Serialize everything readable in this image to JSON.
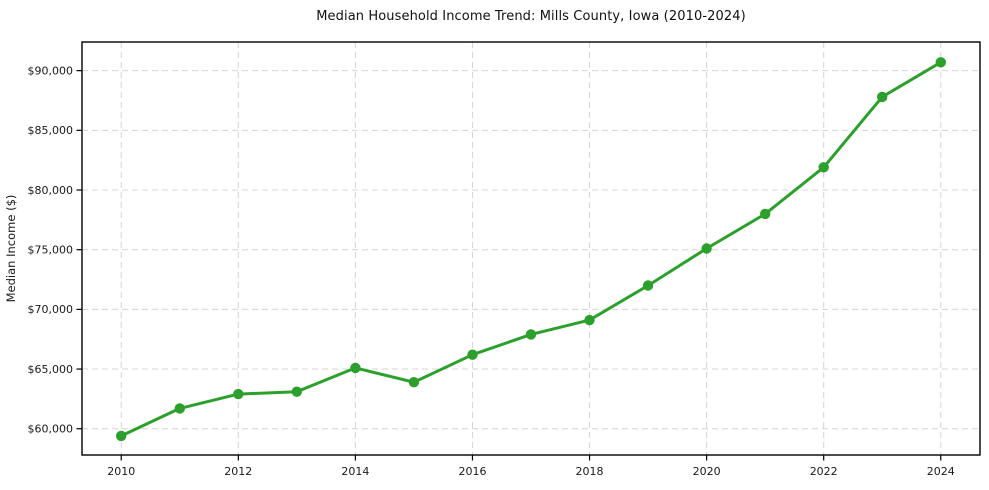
{
  "chart_data": {
    "type": "line",
    "title": "Median Household Income Trend: Mills County, Iowa (2010-2024)",
    "xlabel": "",
    "ylabel": "Median Income ($)",
    "x": [
      2010,
      2011,
      2012,
      2013,
      2014,
      2015,
      2016,
      2017,
      2018,
      2019,
      2020,
      2021,
      2022,
      2023,
      2024
    ],
    "series": [
      {
        "name": "Median Household Income",
        "values": [
          59400,
          61700,
          62900,
          63100,
          65100,
          63900,
          66200,
          67900,
          69100,
          72000,
          75100,
          78000,
          81900,
          87800,
          90700
        ],
        "color": "#2ca02c",
        "marker": "circle",
        "line_width": 3
      }
    ],
    "x_ticks": [
      2010,
      2012,
      2014,
      2016,
      2018,
      2020,
      2022,
      2024
    ],
    "x_tick_labels": [
      "2010",
      "2012",
      "2014",
      "2016",
      "2018",
      "2020",
      "2022",
      "2024"
    ],
    "y_ticks": [
      60000,
      65000,
      70000,
      75000,
      80000,
      85000,
      90000
    ],
    "y_tick_labels": [
      "$60,000",
      "$65,000",
      "$70,000",
      "$75,000",
      "$80,000",
      "$85,000",
      "$90,000"
    ],
    "xlim": [
      2009.33,
      2024.67
    ],
    "ylim": [
      57800,
      92400
    ],
    "grid": true,
    "grid_style": "dashed",
    "legend": "none",
    "colors": {
      "line": "#2ca02c",
      "grid": "#d4d4d4",
      "spine": "#000000",
      "text": "#1a1a1a",
      "background": "#ffffff"
    }
  }
}
